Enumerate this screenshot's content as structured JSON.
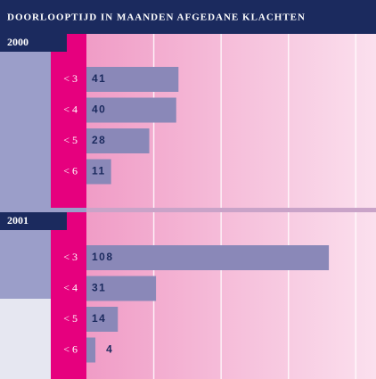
{
  "title": "DOORLOOPTIJD IN MAANDEN AFGEDANE KLACHTEN",
  "chart_data": [
    {
      "type": "bar",
      "title": "2000",
      "categories": [
        "< 3",
        "< 4",
        "< 5",
        "< 6"
      ],
      "values": [
        41,
        40,
        28,
        11
      ],
      "color": "#8a88b8",
      "xlim": [
        0,
        129
      ],
      "xticks": [
        0,
        30,
        60,
        90,
        120
      ],
      "grid": true
    },
    {
      "type": "bar",
      "title": "2001",
      "categories": [
        "< 3",
        "< 4",
        "< 5",
        "< 6"
      ],
      "values": [
        108,
        31,
        14,
        4
      ],
      "color": "#8a88b8",
      "xlim": [
        0,
        129
      ],
      "xticks": [
        0,
        30,
        60,
        90,
        120
      ],
      "grid": true
    }
  ]
}
